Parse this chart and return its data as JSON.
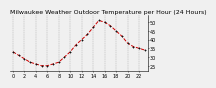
{
  "title": "Milwaukee Weather Outdoor Temperature per Hour (24 Hours)",
  "hours": [
    0,
    1,
    2,
    3,
    4,
    5,
    6,
    7,
    8,
    9,
    10,
    11,
    12,
    13,
    14,
    15,
    16,
    17,
    18,
    19,
    20,
    21,
    22,
    23
  ],
  "temps": [
    33,
    31,
    29,
    27,
    26,
    25,
    25,
    26,
    27,
    30,
    33,
    37,
    40,
    43,
    47,
    51,
    50,
    48,
    45,
    42,
    38,
    36,
    35,
    34
  ],
  "line_color": "#cc0000",
  "marker_color": "#111111",
  "background_color": "#f0f0f0",
  "grid_color": "#888888",
  "text_color": "#000000",
  "ylim": [
    22,
    54
  ],
  "ytick_vals": [
    25,
    30,
    35,
    40,
    45,
    50
  ],
  "xtick_vals": [
    0,
    2,
    4,
    6,
    8,
    10,
    12,
    14,
    16,
    18,
    20,
    22
  ],
  "title_fontsize": 4.5,
  "tick_fontsize": 3.5,
  "line_width": 0.7,
  "marker_size": 2.0,
  "marker_ew": 0.6
}
